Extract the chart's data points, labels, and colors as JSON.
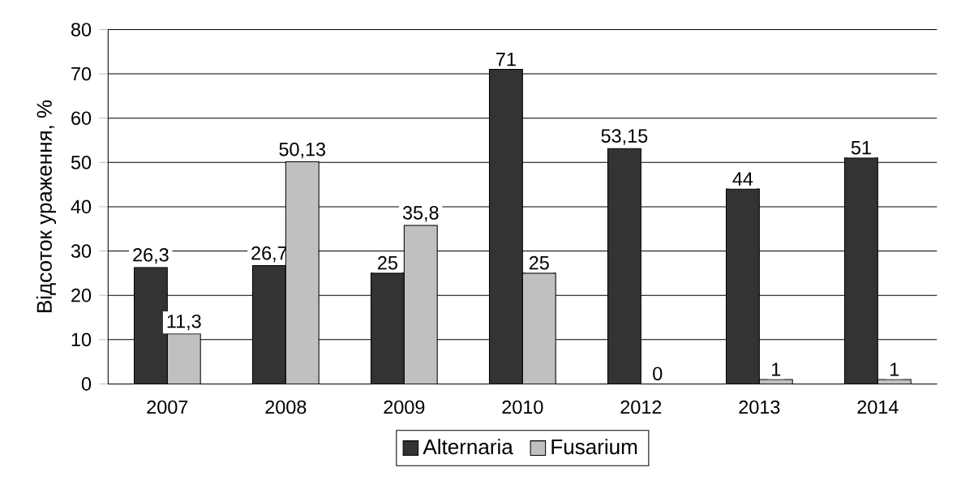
{
  "chart_data": {
    "type": "bar",
    "ylabel": "Відсоток ураження, %",
    "categories": [
      "2007",
      "2008",
      "2009",
      "2010",
      "2012",
      "2013",
      "2014"
    ],
    "series": [
      {
        "name": "Alternaria",
        "color": "#333333",
        "values": [
          26.3,
          26.7,
          25,
          71,
          53.15,
          44,
          51
        ],
        "value_labels": [
          "26,3",
          "26,7",
          "25",
          "71",
          "53,15",
          "44",
          "51"
        ]
      },
      {
        "name": "Fusarium",
        "color": "#c0c0c0",
        "values": [
          11.3,
          50.13,
          35.8,
          25,
          0,
          1,
          1
        ],
        "value_labels": [
          "11,3",
          "50,13",
          "35,8",
          "25",
          "0",
          "1",
          "1"
        ]
      }
    ],
    "ylim": [
      0,
      80
    ],
    "yticks": [
      0,
      10,
      20,
      30,
      40,
      50,
      60,
      70,
      80
    ],
    "grid": "y",
    "legend": "bottom"
  }
}
